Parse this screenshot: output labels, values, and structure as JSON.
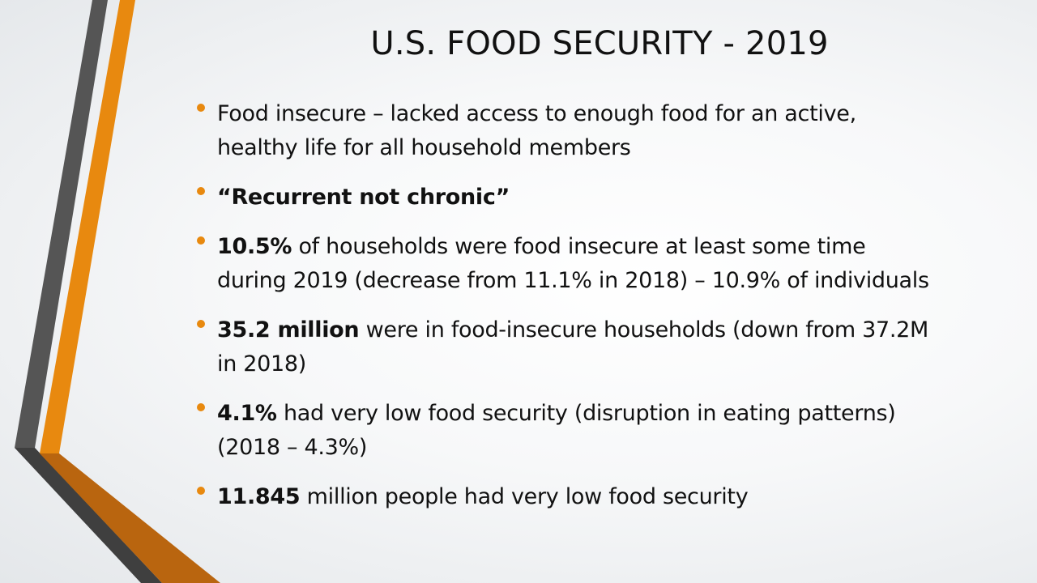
{
  "slide": {
    "title": "U.S. FOOD SECURITY  - 2019",
    "accent_color": "#e8890f",
    "bar_color": "#555555",
    "bullets": [
      {
        "bold": "",
        "lines": [
          "Food insecure – lacked access to enough food for an active,",
          "healthy life for all household members"
        ]
      },
      {
        "bold": "“Recurrent not chronic”",
        "lines": [
          ""
        ]
      },
      {
        "bold": "10.5%",
        "lines": [
          " of households were food insecure at least some time",
          "during 2019 (decrease from 11.1% in 2018) – 10.9% of individuals"
        ]
      },
      {
        "bold": "35.2 million",
        "lines": [
          " were in food-insecure households (down from 37.2M",
          "in 2018)"
        ]
      },
      {
        "bold": "4.1%",
        "lines": [
          " had very low food security (disruption in eating patterns)",
          "(2018 – 4.3%)"
        ]
      },
      {
        "bold": "11.845",
        "lines": [
          " million people had very low food security"
        ]
      }
    ]
  }
}
